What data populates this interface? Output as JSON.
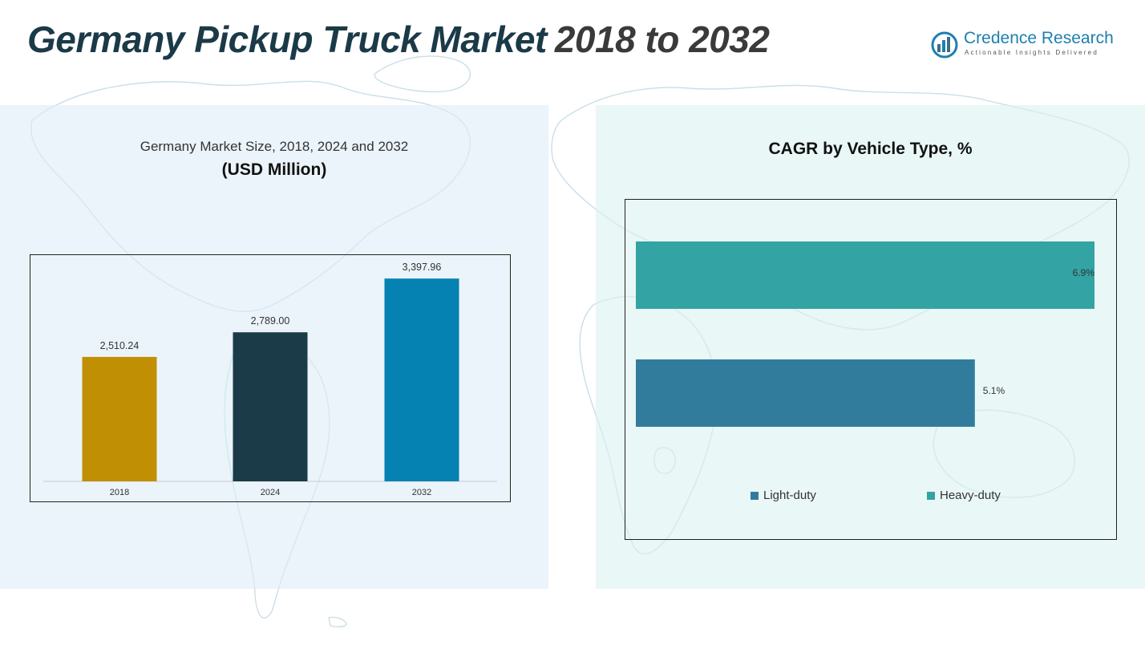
{
  "header": {
    "title": "Germany Pickup Truck Market",
    "title_years": "2018 to 2032"
  },
  "logo": {
    "name": "Credence Research",
    "tagline": "Actionable Insights Delivered"
  },
  "colors": {
    "title_dark": "#1b3a48",
    "bar_2018": "#c08f03",
    "bar_2024": "#1b3b48",
    "bar_2032": "#0581b2",
    "light_duty": "#317c9c",
    "heavy_duty": "#33a3a3"
  },
  "chart_data": [
    {
      "type": "bar",
      "title": "Germany Market Size, 2018, 2024 and 2032",
      "subtitle": "(USD Million)",
      "categories": [
        "2018",
        "2024",
        "2032"
      ],
      "values": [
        2510.24,
        2789.0,
        3397.96
      ],
      "value_labels": [
        "2,510.24",
        "2,789.00",
        "3,397.96"
      ],
      "ylim": [
        1100,
        3600
      ],
      "xlabel": "",
      "ylabel": "",
      "grid": false
    },
    {
      "type": "bar",
      "orientation": "horizontal",
      "title": "CAGR by Vehicle Type, %",
      "categories": [
        "Light-duty",
        "Heavy-duty"
      ],
      "values": [
        5.1,
        6.9
      ],
      "value_labels": [
        "5.1%",
        "6.9%"
      ],
      "xlim": [
        0,
        6.9
      ],
      "legend": [
        "Light-duty",
        "Heavy-duty"
      ],
      "legend_position": "bottom"
    }
  ]
}
